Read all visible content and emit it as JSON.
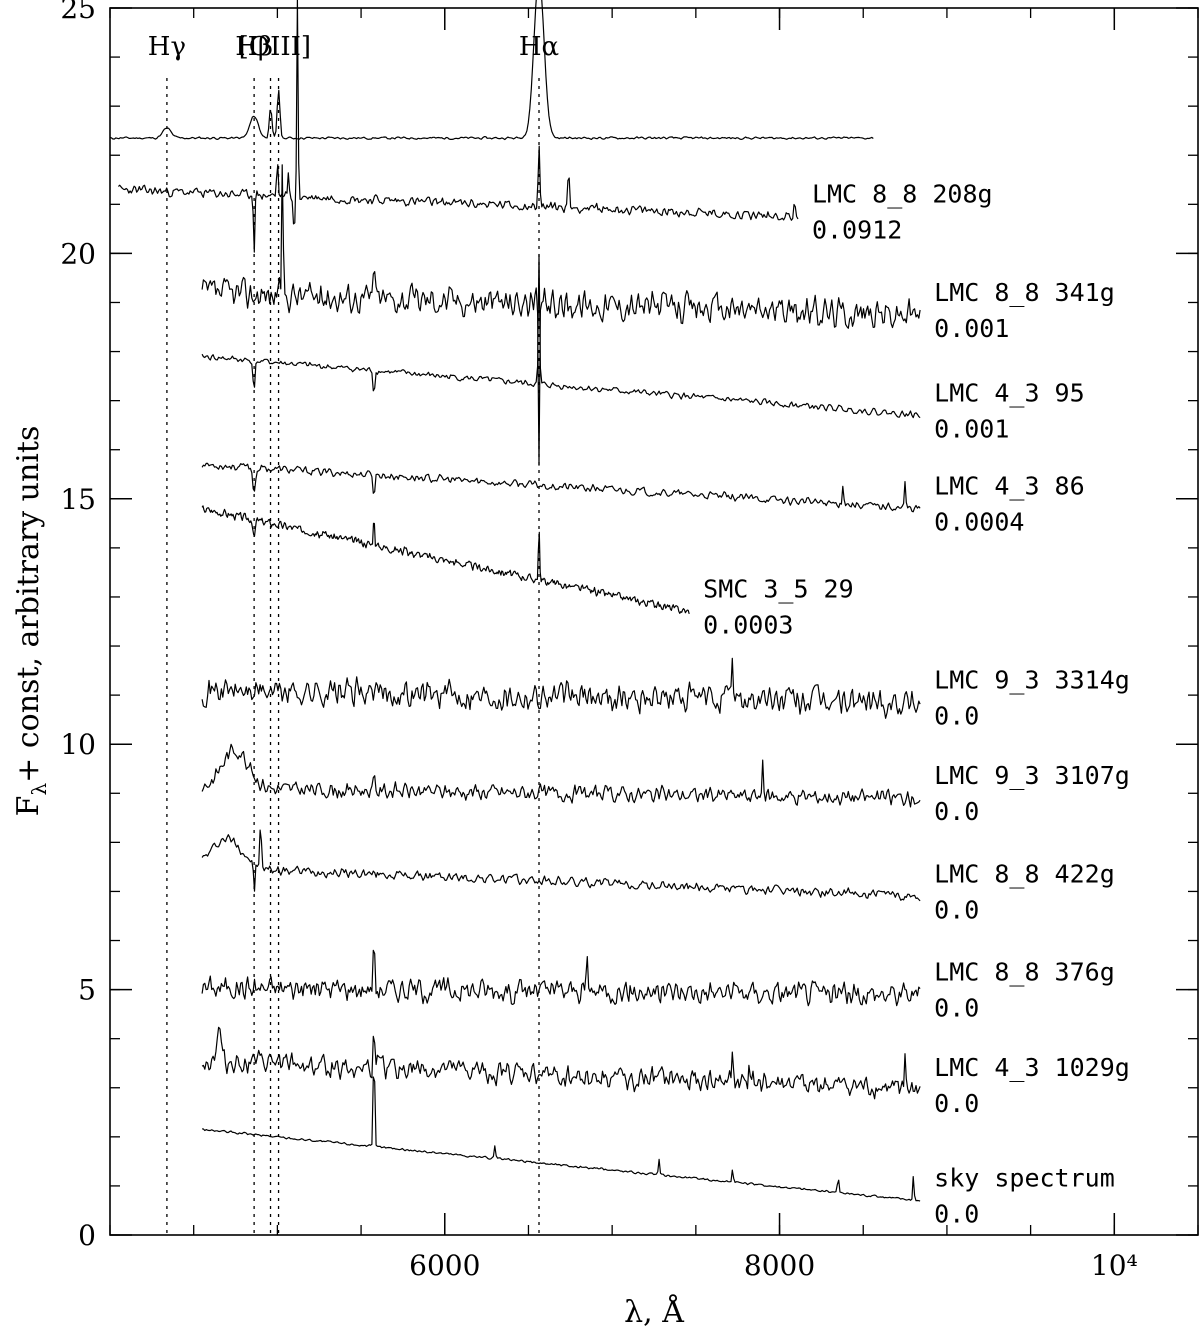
{
  "chart_data": {
    "type": "line",
    "title": "",
    "xlabel": "λ, Å",
    "ylabel": "Fλ+ const, arbitrary units",
    "ylabel_main": "F",
    "ylabel_sub": "λ",
    "ylabel_rest": "+ const, arbitrary units",
    "xlim": [
      4000,
      10500
    ],
    "ylim": [
      0,
      25
    ],
    "x_ticks": [
      {
        "value": 6000,
        "label": "6000"
      },
      {
        "value": 8000,
        "label": "8000"
      },
      {
        "value": 10000,
        "label": "10⁴"
      }
    ],
    "x_minor_step": 500,
    "y_ticks": [
      {
        "value": 0,
        "label": "0"
      },
      {
        "value": 5,
        "label": "5"
      },
      {
        "value": 10,
        "label": "10"
      },
      {
        "value": 15,
        "label": "15"
      },
      {
        "value": 20,
        "label": "20"
      },
      {
        "value": 25,
        "label": "25"
      }
    ],
    "y_minor_step": 1,
    "grid": false,
    "line_markers": [
      {
        "name": "Hγ",
        "x": 4340
      },
      {
        "name": "Hβ",
        "x": 4861
      },
      {
        "name": "[OIII]",
        "x": 4959
      },
      {
        "name": "[OIII]",
        "x": 5007
      },
      {
        "name": "Hα",
        "x": 6563
      }
    ],
    "line_marker_labels": [
      {
        "text": "Hγ",
        "x": 4340
      },
      {
        "text": "Hβ",
        "x": 4861
      },
      {
        "text": "[OIII]",
        "x": 4985
      },
      {
        "text": "Hα",
        "x": 6563
      }
    ],
    "series": [
      {
        "label": "",
        "redshift": "",
        "x_start": 4000,
        "x_end": 8560,
        "level": 22.35,
        "slope": 0,
        "noise": 0.03,
        "seed": 11,
        "features": [
          {
            "x": 4340,
            "h": 0.2,
            "w": 25
          },
          {
            "x": 4861,
            "h": 0.45,
            "w": 25
          },
          {
            "x": 4959,
            "h": 0.6,
            "w": 8
          },
          {
            "x": 5007,
            "h": 1.0,
            "w": 8
          },
          {
            "x": 6563,
            "h": 3.3,
            "w": 30
          }
        ]
      },
      {
        "label": "LMC 8_8 208g",
        "redshift": "0.0912",
        "x_start": 4050,
        "x_end": 8110,
        "level": 21.3,
        "slope": -0.55,
        "noise": 0.12,
        "seed": 23,
        "features": [
          {
            "x": 4861,
            "h": -1.1,
            "w": 4
          },
          {
            "x": 5000,
            "h": 0.8,
            "w": 4
          },
          {
            "x": 5065,
            "h": 0.5,
            "w": 4
          },
          {
            "x": 5100,
            "h": -0.9,
            "w": 4
          },
          {
            "x": 5120,
            "h": 4.0,
            "w": 4
          },
          {
            "x": 6563,
            "h": 1.2,
            "w": 5
          },
          {
            "x": 6740,
            "h": 0.7,
            "w": 5
          },
          {
            "x": 8090,
            "h": 0.4,
            "w": 4
          }
        ]
      },
      {
        "label": "LMC 8_8 341g",
        "redshift": "0.001",
        "x_start": 4550,
        "x_end": 8840,
        "level": 19.2,
        "slope": -0.45,
        "noise": 0.38,
        "seed": 37,
        "features": [
          {
            "x": 5030,
            "h": 2.9,
            "w": 4
          },
          {
            "x": 5577,
            "h": 1.0,
            "w": 4
          },
          {
            "x": 6563,
            "h": -3.5,
            "w": 4
          }
        ]
      },
      {
        "label": "LMC 4_3 95",
        "redshift": "0.001",
        "x_start": 4550,
        "x_end": 8840,
        "level": 17.9,
        "slope": -1.2,
        "noise": 0.08,
        "seed": 41,
        "features": [
          {
            "x": 4861,
            "h": -0.6,
            "w": 6
          },
          {
            "x": 5577,
            "h": -0.6,
            "w": 4
          },
          {
            "x": 6563,
            "h": 2.6,
            "w": 4
          }
        ]
      },
      {
        "label": "LMC 4_3 86",
        "redshift": "0.0004",
        "x_start": 4550,
        "x_end": 8840,
        "level": 15.7,
        "slope": -0.9,
        "noise": 0.1,
        "seed": 53,
        "features": [
          {
            "x": 4861,
            "h": -0.5,
            "w": 8
          },
          {
            "x": 5577,
            "h": -0.5,
            "w": 4
          },
          {
            "x": 8380,
            "h": 0.5,
            "w": 4
          },
          {
            "x": 8750,
            "h": 0.5,
            "w": 4
          }
        ]
      },
      {
        "label": "SMC 3_5 29",
        "redshift": "0.0003",
        "x_start": 4550,
        "x_end": 7460,
        "level": 14.8,
        "slope": -2.1,
        "noise": 0.1,
        "seed": 67,
        "features": [
          {
            "x": 4861,
            "h": -0.4,
            "w": 6
          },
          {
            "x": 5577,
            "h": 0.6,
            "w": 4
          },
          {
            "x": 6563,
            "h": 1.0,
            "w": 4
          }
        ]
      },
      {
        "label": "LMC 9_3 3314g",
        "redshift": "0.0",
        "x_start": 4550,
        "x_end": 8840,
        "level": 11.1,
        "slope": -0.25,
        "noise": 0.35,
        "seed": 71,
        "features": [
          {
            "x": 7720,
            "h": 1.0,
            "w": 4
          }
        ]
      },
      {
        "label": "LMC 9_3 3107g",
        "redshift": "0.0",
        "x_start": 4550,
        "x_end": 8840,
        "level": 9.1,
        "slope": -0.2,
        "noise": 0.2,
        "seed": 83,
        "features": [
          {
            "x": 4750,
            "h": 0.8,
            "w": 80
          },
          {
            "x": 5577,
            "h": 0.6,
            "w": 4
          },
          {
            "x": 7900,
            "h": 0.6,
            "w": 4
          }
        ]
      },
      {
        "label": "LMC 8_8 422g",
        "redshift": "0.0",
        "x_start": 4550,
        "x_end": 8840,
        "level": 7.5,
        "slope": -0.6,
        "noise": 0.12,
        "seed": 97,
        "features": [
          {
            "x": 4700,
            "h": 0.6,
            "w": 90
          },
          {
            "x": 4861,
            "h": -0.7,
            "w": 4
          },
          {
            "x": 4900,
            "h": 1.0,
            "w": 4
          }
        ]
      },
      {
        "label": "LMC 8_8 376g",
        "redshift": "0.0",
        "x_start": 4550,
        "x_end": 8840,
        "level": 5.05,
        "slope": -0.15,
        "noise": 0.3,
        "seed": 101,
        "features": [
          {
            "x": 5577,
            "h": 1.2,
            "w": 4
          },
          {
            "x": 6850,
            "h": 0.7,
            "w": 4
          }
        ]
      },
      {
        "label": "LMC 4_3 1029g",
        "redshift": "0.0",
        "x_start": 4550,
        "x_end": 8840,
        "level": 3.55,
        "slope": -0.6,
        "noise": 0.28,
        "seed": 113,
        "features": [
          {
            "x": 4650,
            "h": 0.6,
            "w": 15
          },
          {
            "x": 5577,
            "h": 1.0,
            "w": 4
          },
          {
            "x": 7720,
            "h": 0.6,
            "w": 4
          },
          {
            "x": 7820,
            "h": 0.6,
            "w": 4
          },
          {
            "x": 8750,
            "h": 0.6,
            "w": 4
          }
        ]
      },
      {
        "label": "sky spectrum",
        "redshift": "0.0",
        "x_start": 4550,
        "x_end": 8840,
        "level": 2.15,
        "slope": -1.45,
        "noise": 0.03,
        "seed": 127,
        "features": [
          {
            "x": 5577,
            "h": 2.3,
            "w": 4
          },
          {
            "x": 6300,
            "h": 0.25,
            "w": 4
          },
          {
            "x": 7280,
            "h": 0.3,
            "w": 4
          },
          {
            "x": 7720,
            "h": 0.3,
            "w": 4
          },
          {
            "x": 8350,
            "h": 0.35,
            "w": 4
          },
          {
            "x": 8800,
            "h": 0.5,
            "w": 4
          }
        ]
      }
    ]
  }
}
